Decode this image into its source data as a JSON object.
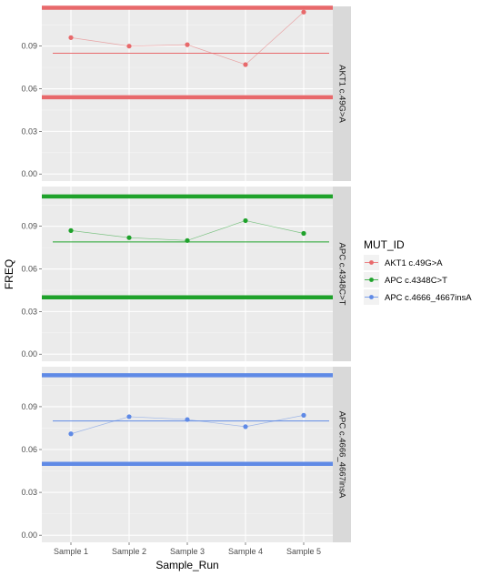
{
  "chart_data": {
    "type": "line",
    "xlabel": "Sample_Run",
    "ylabel": "FREQ",
    "categories": [
      "Sample 1",
      "Sample 2",
      "Sample 3",
      "Sample 4",
      "Sample 5"
    ],
    "ylim": [
      -0.005,
      0.118
    ],
    "yticks": [
      0.0,
      0.03,
      0.06,
      0.09
    ],
    "ytick_labels": [
      "0.00",
      "0.03",
      "0.06",
      "0.09"
    ],
    "grid": true,
    "legend": {
      "title": "MUT_ID",
      "position": "right",
      "entries": [
        "AKT1 c.49G>A",
        "APC c.4348C>T",
        "APC c.4666_4667insA"
      ]
    },
    "series": [
      {
        "name": "AKT1 c.49G>A",
        "strip_label": "AKT1 c.49G>A",
        "color": "#e8696b",
        "values": [
          0.096,
          0.09,
          0.091,
          0.077,
          0.114
        ],
        "mean_line": 0.085,
        "upper_limit": 0.117,
        "lower_limit": 0.054
      },
      {
        "name": "APC c.4348C>T",
        "strip_label": "APC c.4348C>T",
        "color": "#1fa22b",
        "values": [
          0.087,
          0.082,
          0.08,
          0.094,
          0.085
        ],
        "mean_line": 0.079,
        "upper_limit": 0.111,
        "lower_limit": 0.04
      },
      {
        "name": "APC c.4666_4667insA",
        "strip_label": "APC c.4666_4667insA",
        "color": "#5f8ae6",
        "values": [
          0.071,
          0.083,
          0.081,
          0.076,
          0.084
        ],
        "mean_line": 0.08,
        "upper_limit": 0.112,
        "lower_limit": 0.05
      }
    ]
  }
}
